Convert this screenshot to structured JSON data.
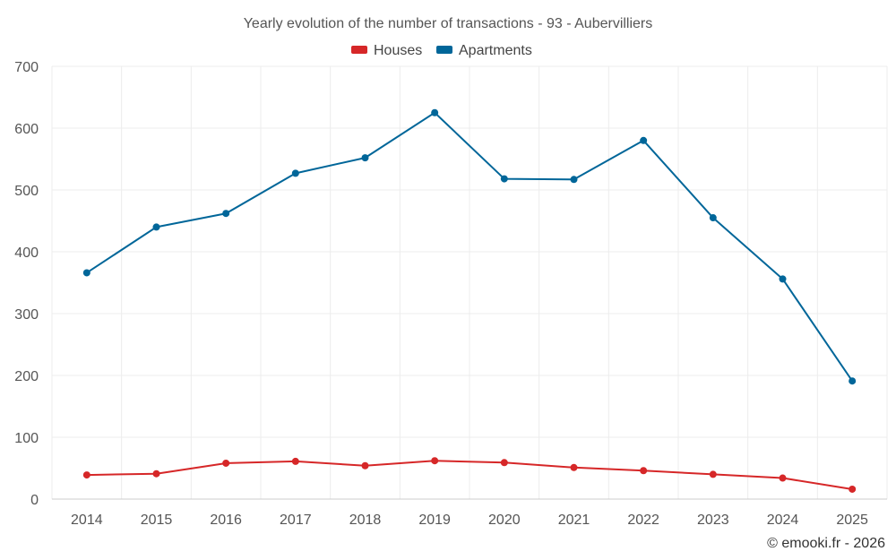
{
  "chart_data": {
    "type": "line",
    "title": "Yearly evolution of the number of transactions - 93 - Aubervilliers",
    "categories": [
      "2014",
      "2015",
      "2016",
      "2017",
      "2018",
      "2019",
      "2020",
      "2021",
      "2022",
      "2023",
      "2024",
      "2025"
    ],
    "series": [
      {
        "name": "Houses",
        "color": "#d62728",
        "values": [
          39,
          41,
          58,
          61,
          54,
          62,
          59,
          51,
          46,
          40,
          34,
          16
        ]
      },
      {
        "name": "Apartments",
        "color": "#006699",
        "values": [
          366,
          440,
          462,
          527,
          552,
          625,
          518,
          517,
          580,
          455,
          356,
          191
        ]
      }
    ],
    "y_ticks": [
      "0",
      "100",
      "200",
      "300",
      "400",
      "500",
      "600",
      "700"
    ],
    "ylim": [
      0,
      700
    ],
    "grid": true,
    "legend_position": "top-center",
    "xlabel": "",
    "ylabel": ""
  },
  "credit": "© emooki.fr - 2026"
}
